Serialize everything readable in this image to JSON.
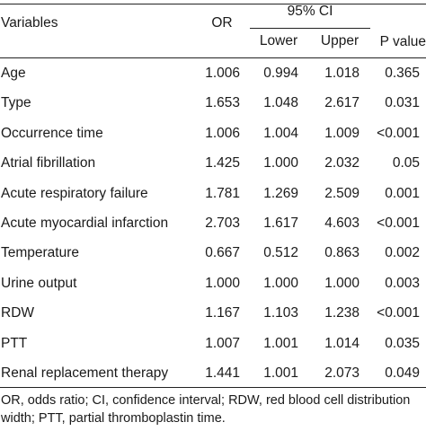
{
  "header": {
    "variables": "Variables",
    "or": "OR",
    "ci": "95% CI",
    "lower": "Lower",
    "upper": "Upper",
    "p_value": "P value"
  },
  "rows": [
    {
      "variable": "Age",
      "or": "1.006",
      "lower": "0.994",
      "upper": "1.018",
      "p": "0.365"
    },
    {
      "variable": "Type",
      "or": "1.653",
      "lower": "1.048",
      "upper": "2.617",
      "p": "0.031"
    },
    {
      "variable": "Occurrence time",
      "or": "1.006",
      "lower": "1.004",
      "upper": "1.009",
      "p": "<0.001"
    },
    {
      "variable": "Atrial fibrillation",
      "or": "1.425",
      "lower": "1.000",
      "upper": "2.032",
      "p": "0.05"
    },
    {
      "variable": "Acute respiratory failure",
      "or": "1.781",
      "lower": "1.269",
      "upper": "2.509",
      "p": "0.001"
    },
    {
      "variable": "Acute myocardial infarction",
      "or": "2.703",
      "lower": "1.617",
      "upper": "4.603",
      "p": "<0.001"
    },
    {
      "variable": "Temperature",
      "or": "0.667",
      "lower": "0.512",
      "upper": "0.863",
      "p": "0.002"
    },
    {
      "variable": "Urine output",
      "or": "1.000",
      "lower": "1.000",
      "upper": "1.000",
      "p": "0.003"
    },
    {
      "variable": "RDW",
      "or": "1.167",
      "lower": "1.103",
      "upper": "1.238",
      "p": "<0.001"
    },
    {
      "variable": "PTT",
      "or": "1.007",
      "lower": "1.001",
      "upper": "1.014",
      "p": "0.035"
    },
    {
      "variable": "Renal replacement therapy",
      "or": "1.441",
      "lower": "1.001",
      "upper": "2.073",
      "p": "0.049"
    }
  ],
  "footnote": "OR, odds ratio; CI, confidence interval; RDW, red blood cell distribution width; PTT, partial thromboplastin time."
}
